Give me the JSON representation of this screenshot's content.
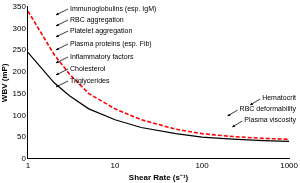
{
  "chart_data": {
    "type": "line",
    "x_label": "Shear Rate (s⁻¹)",
    "y_label": "WBV (mP)",
    "x": [
      1,
      2,
      3,
      5,
      10,
      20,
      50,
      100,
      200,
      500,
      1000
    ],
    "series": [
      {
        "color": "#ff0000",
        "line_style": "dashed",
        "marker": "none",
        "values": [
          340,
          240,
          195,
          150,
          115,
          90,
          68,
          58,
          52,
          47,
          45
        ]
      },
      {
        "color": "#000000",
        "line_style": "solid",
        "marker": "none",
        "values": [
          245,
          175,
          145,
          115,
          90,
          72,
          58,
          50,
          46,
          42,
          40
        ]
      }
    ],
    "log": "x",
    "xlim": [
      1,
      1000
    ],
    "xticks": [
      1,
      10,
      100,
      1000
    ],
    "ylim": [
      0,
      350
    ],
    "yticks": [
      0,
      50,
      100,
      150,
      200,
      250,
      300,
      350
    ],
    "grid": false,
    "annotations": [
      "Immunoglobulins (esp. IgM)",
      "RBC aggregation",
      "Platelet aggregation",
      "Plasma proteins (esp. Fib)",
      "Inflammatory factors",
      "Cholesterol",
      "Triglycerides",
      "Hematocrit",
      "RBC deformability",
      "Plasma viscosity"
    ]
  }
}
